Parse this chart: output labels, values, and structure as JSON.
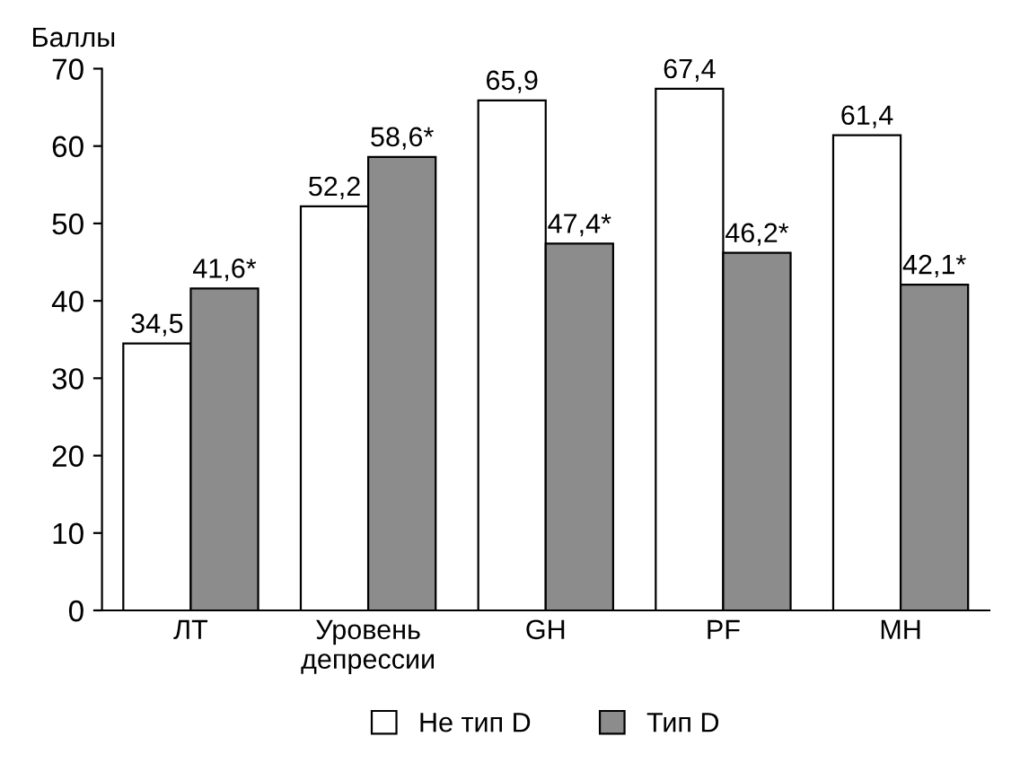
{
  "chart_data": {
    "type": "bar",
    "ylabel": "Баллы",
    "categories": [
      "ЛТ",
      "Уровень\nдепрессии",
      "GH",
      "PF",
      "MH"
    ],
    "series": [
      {
        "name": "Не тип D",
        "color": "#ffffff",
        "values": [
          34.5,
          52.2,
          65.9,
          67.4,
          61.4
        ],
        "value_labels": [
          "34,5",
          "52,2",
          "65,9",
          "67,4",
          "61,4"
        ]
      },
      {
        "name": "Тип D",
        "color": "#8c8c8c",
        "values": [
          41.6,
          58.6,
          47.4,
          46.2,
          42.1
        ],
        "value_labels": [
          "41,6*",
          "58,6*",
          "47,4*",
          "46,2*",
          "42,1*"
        ]
      }
    ],
    "ylim": [
      0,
      70
    ],
    "yticks": [
      0,
      10,
      20,
      30,
      40,
      50,
      60,
      70
    ],
    "grid": false,
    "legend": "bottom"
  }
}
